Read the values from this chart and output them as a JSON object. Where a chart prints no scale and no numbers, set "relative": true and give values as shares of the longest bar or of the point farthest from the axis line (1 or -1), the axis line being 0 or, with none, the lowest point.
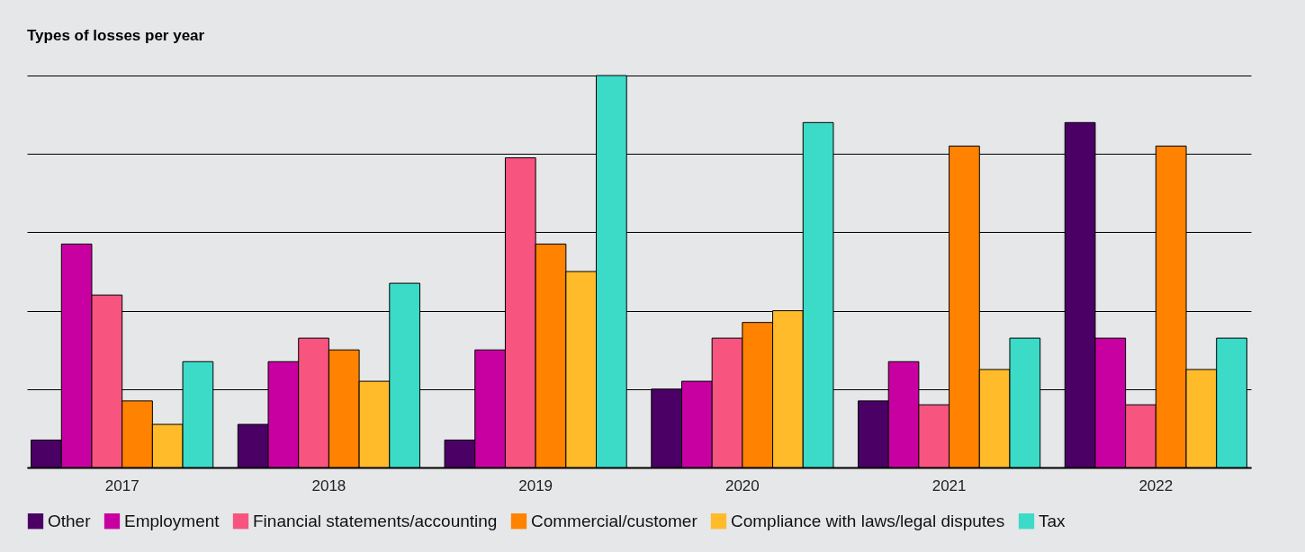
{
  "chart_data": {
    "type": "bar",
    "title": "Types of losses per year",
    "relative": true,
    "grid": "y",
    "legend": "bottom",
    "categories": [
      "2017",
      "2018",
      "2019",
      "2020",
      "2021",
      "2022"
    ],
    "series": [
      {
        "name": "Other",
        "color": "#4b0066",
        "values": [
          0.07,
          0.11,
          0.07,
          0.2,
          0.17,
          0.88
        ]
      },
      {
        "name": "Employment",
        "color": "#c800a1",
        "values": [
          0.57,
          0.27,
          0.3,
          0.22,
          0.27,
          0.33
        ]
      },
      {
        "name": "Financial statements/accounting",
        "color": "#f75480",
        "values": [
          0.44,
          0.33,
          0.79,
          0.33,
          0.16,
          0.16
        ]
      },
      {
        "name": "Commercial/customer",
        "color": "#ff8200",
        "values": [
          0.17,
          0.3,
          0.57,
          0.37,
          0.82,
          0.82
        ]
      },
      {
        "name": "Compliance with laws/legal disputes",
        "color": "#ffbb2a",
        "values": [
          0.11,
          0.22,
          0.5,
          0.4,
          0.25,
          0.25
        ]
      },
      {
        "name": "Tax",
        "color": "#3cdbc8",
        "values": [
          0.27,
          0.47,
          1,
          0.88,
          0.33,
          0.33
        ]
      }
    ]
  }
}
